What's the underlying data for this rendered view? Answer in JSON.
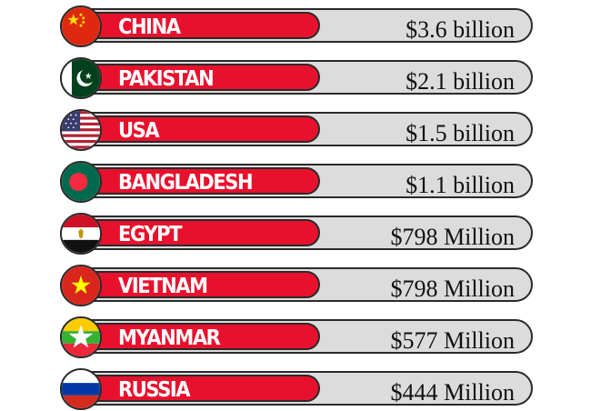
{
  "chart_data": {
    "type": "bar",
    "title": "",
    "unit": "USD",
    "categories": [
      "CHINA",
      "PAKISTAN",
      "USA",
      "BANGLADESH",
      "EGYPT",
      "VIETNAM",
      "MYANMAR",
      "RUSSIA"
    ],
    "values_usd": [
      3600000000,
      2100000000,
      1500000000,
      1100000000,
      798000000,
      798000000,
      577000000,
      444000000
    ],
    "value_labels": [
      "$3.6 billion",
      "$2.1 billion",
      "$1.5 billion",
      "$1.1 billion",
      "$798 Million",
      "$798 Million",
      "$577 Million",
      "$444 Million"
    ],
    "flag_icons": [
      "china-flag-icon",
      "pakistan-flag-icon",
      "usa-flag-icon",
      "bangladesh-flag-icon",
      "egypt-flag-icon",
      "vietnam-flag-icon",
      "myanmar-flag-icon",
      "russia-flag-icon"
    ]
  },
  "colors": {
    "bar_red": "#e8112d",
    "track_gray": "#dcdcdc",
    "outline": "#2a2a2a"
  }
}
